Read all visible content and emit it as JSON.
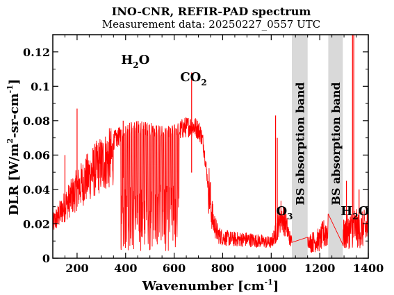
{
  "chart_data": {
    "type": "line",
    "title": "INO-CNR, REFIR-PAD spectrum",
    "subtitle": "Measurement data: 20250227_0557 UTC",
    "xlabel": "Wavenumber [cm",
    "xlabel_sup": "-1",
    "xlabel_end": "]",
    "ylabel": "DLR [W/m",
    "ylabel_sup1": "2",
    "ylabel_mid": "-sr-cm",
    "ylabel_sup2": "-1",
    "ylabel_end": "]",
    "xlim": [
      100,
      1400
    ],
    "ylim": [
      0,
      0.13
    ],
    "x_ticks": [
      200,
      400,
      600,
      800,
      1000,
      1200,
      1400
    ],
    "x_tick_labels": [
      "200",
      "400",
      "600",
      "800",
      "1000",
      "1200",
      "1400"
    ],
    "y_ticks": [
      0,
      0.02,
      0.04,
      0.06,
      0.08,
      0.1,
      0.12
    ],
    "y_tick_labels": [
      "0",
      "0.02",
      "0.04",
      "0.06",
      "0.08",
      "0.1",
      "0.12"
    ],
    "grid": false,
    "series_color": "#ff0000",
    "band_color": "#d9d9d9",
    "bands": [
      {
        "x0": 1085,
        "x1": 1150,
        "label": "BS absorption band"
      },
      {
        "x0": 1235,
        "x1": 1295,
        "label": "BS absorption band"
      }
    ],
    "annotations": [
      {
        "base": "H",
        "sub": "2",
        "rest": "O",
        "x": 440,
        "y": 0.113
      },
      {
        "base": "CO",
        "sub": "2",
        "rest": "",
        "x": 680,
        "y": 0.103
      },
      {
        "base": "O",
        "sub": "3",
        "rest": "",
        "x": 1055,
        "y": 0.025
      },
      {
        "base": "H",
        "sub": "2",
        "rest": "O",
        "x": 1345,
        "y": 0.025
      }
    ],
    "envelope": [
      [
        100,
        0.025
      ],
      [
        120,
        0.03
      ],
      [
        150,
        0.038
      ],
      [
        180,
        0.045
      ],
      [
        200,
        0.05
      ],
      [
        230,
        0.056
      ],
      [
        260,
        0.062
      ],
      [
        290,
        0.067
      ],
      [
        320,
        0.071
      ],
      [
        350,
        0.074
      ],
      [
        380,
        0.077
      ],
      [
        400,
        0.079
      ],
      [
        430,
        0.08
      ],
      [
        460,
        0.08
      ],
      [
        500,
        0.079
      ],
      [
        540,
        0.078
      ],
      [
        570,
        0.077
      ],
      [
        600,
        0.078
      ],
      [
        620,
        0.08
      ],
      [
        640,
        0.082
      ],
      [
        660,
        0.083
      ],
      [
        680,
        0.083
      ],
      [
        700,
        0.081
      ],
      [
        710,
        0.078
      ],
      [
        720,
        0.072
      ],
      [
        730,
        0.06
      ],
      [
        740,
        0.045
      ],
      [
        750,
        0.032
      ],
      [
        760,
        0.022
      ],
      [
        780,
        0.014
      ],
      [
        800,
        0.012
      ],
      [
        850,
        0.011
      ],
      [
        900,
        0.011
      ],
      [
        950,
        0.01
      ],
      [
        1000,
        0.009
      ],
      [
        1020,
        0.015
      ],
      [
        1040,
        0.025
      ],
      [
        1060,
        0.02
      ],
      [
        1080,
        0.01
      ],
      [
        1160,
        0.01
      ],
      [
        1200,
        0.012
      ],
      [
        1230,
        0.018
      ],
      [
        1300,
        0.015
      ],
      [
        1340,
        0.02
      ],
      [
        1370,
        0.018
      ],
      [
        1400,
        0.02
      ]
    ],
    "spikes": [
      {
        "x": 150,
        "y": 0.06
      },
      {
        "x": 200,
        "y": 0.087
      },
      {
        "x": 390,
        "y": 0.08
      },
      {
        "x": 672,
        "y": 0.108
      },
      {
        "x": 1018,
        "y": 0.083
      },
      {
        "x": 1025,
        "y": 0.07
      },
      {
        "x": 1335,
        "y": 0.13
      },
      {
        "x": 1340,
        "y": 0.13
      },
      {
        "x": 1310,
        "y": 0.045
      },
      {
        "x": 1362,
        "y": 0.04
      }
    ],
    "deep_dip_range": [
      380,
      620
    ]
  }
}
